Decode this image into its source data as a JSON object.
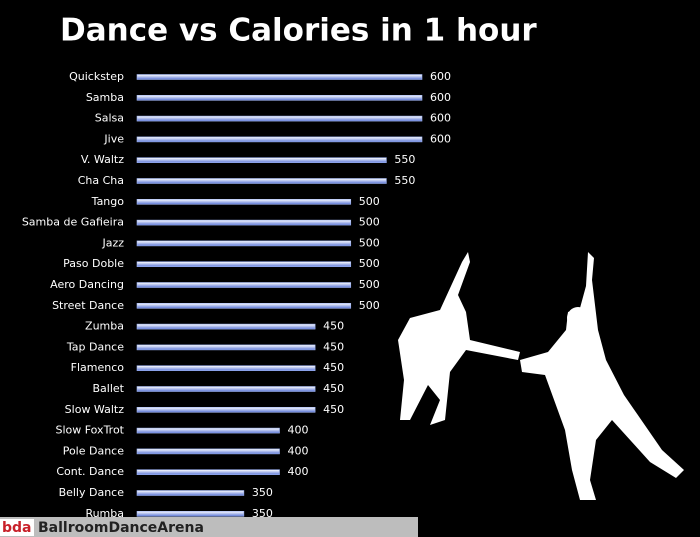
{
  "chart_data": {
    "type": "bar",
    "orientation": "horizontal",
    "title": "Dance vs Calories in 1 hour",
    "categories": [
      "Quickstep",
      "Samba",
      "Salsa",
      "Jive",
      "V. Waltz",
      "Cha Cha",
      "Tango",
      "Samba de Gafieira",
      "Jazz",
      "Paso Doble",
      "Aero Dancing",
      "Street Dance",
      "Zumba",
      "Tap Dance",
      "Flamenco",
      "Ballet",
      "Slow Waltz",
      "Slow FoxTrot",
      "Pole Dance",
      "Cont. Dance",
      "Belly Dance",
      "Rumba"
    ],
    "values": [
      600,
      600,
      600,
      600,
      550,
      550,
      500,
      500,
      500,
      500,
      500,
      500,
      450,
      450,
      450,
      450,
      450,
      400,
      400,
      400,
      350,
      350
    ],
    "xlim": [
      200,
      600
    ],
    "color": "#9fb4f2"
  },
  "footer": {
    "logo": "bda",
    "name": "BallroomDanceArena"
  }
}
